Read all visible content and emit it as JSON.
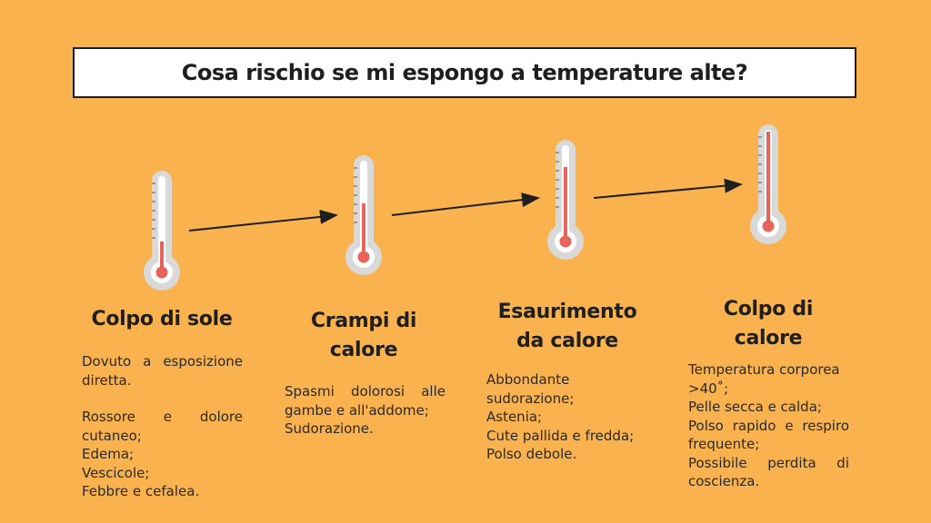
{
  "title": "Cosa rischio se mi espongo a temperature alte?",
  "colors": {
    "background": "#F9B24E",
    "mercury": "#E8645A",
    "bulb_outer": "#D9D9D9"
  },
  "stages": [
    {
      "heading": "Colpo di sole",
      "mercury_level": 0.3,
      "desc_a": [
        "Dovuto a esposizione diretta."
      ],
      "desc_b": [
        "Rossore e dolore cutaneo;",
        "Edema;",
        "Vescicole;",
        "Febbre e cefalea."
      ]
    },
    {
      "heading_lines": [
        "Crampi di",
        "calore"
      ],
      "mercury_level": 0.55,
      "desc_a": [
        "Spasmi dolorosi alle gambe e all'addome;",
        "Sudorazione."
      ]
    },
    {
      "heading_lines": [
        "Esaurimento",
        "da calore"
      ],
      "mercury_level": 0.78,
      "desc_a": [
        "Abbondante sudorazione;",
        "Astenia;",
        "Cute pallida e fredda;",
        "Polso debole."
      ]
    },
    {
      "heading_lines": [
        "Colpo di",
        "calore"
      ],
      "mercury_level": 1.0,
      "desc_a": [
        "Temperatura corporea >40˚;",
        "Pelle secca e calda;",
        "Polso rapido e respiro frequente;",
        "Possibile perdita di coscienza."
      ]
    }
  ]
}
